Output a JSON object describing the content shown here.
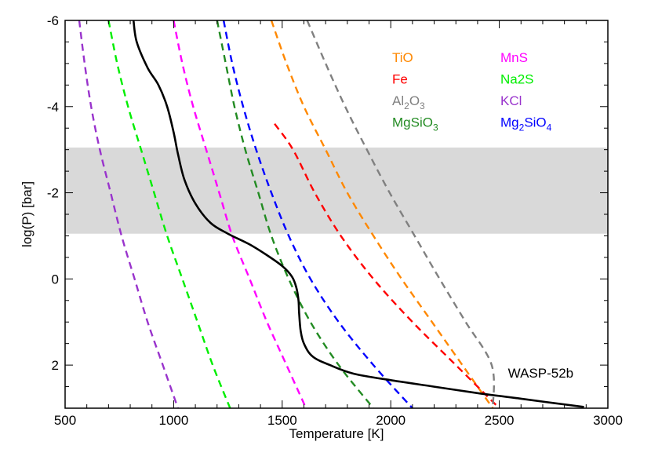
{
  "chart_data": {
    "type": "line",
    "title": "",
    "xlabel": "Temperature [K]",
    "ylabel": "log(P) [bar]",
    "xlim": [
      500,
      3000
    ],
    "ylim": [
      3,
      -6
    ],
    "x_ticks": [
      500,
      1000,
      1500,
      2000,
      2500,
      3000
    ],
    "y_ticks": [
      -6,
      -4,
      -2,
      0,
      2
    ],
    "y_minor_step": 0.5,
    "x_minor_step": 100,
    "shaded_band": {
      "ymin": -3.05,
      "ymax": -1.05,
      "color": "#d9d9d9"
    },
    "annotation": {
      "text": "WASP-52b",
      "x": 2540,
      "y": 2.45
    },
    "profile": {
      "name": "WASP-52b",
      "color": "#000000",
      "style": "solid",
      "points": [
        [
          815,
          -6
        ],
        [
          830,
          -5.5
        ],
        [
          880,
          -4.9
        ],
        [
          930,
          -4.5
        ],
        [
          970,
          -4.0
        ],
        [
          1000,
          -3.4
        ],
        [
          1020,
          -2.9
        ],
        [
          1050,
          -2.3
        ],
        [
          1100,
          -1.75
        ],
        [
          1170,
          -1.3
        ],
        [
          1250,
          -1.05
        ],
        [
          1350,
          -0.8
        ],
        [
          1430,
          -0.55
        ],
        [
          1500,
          -0.3
        ],
        [
          1545,
          -0.05
        ],
        [
          1565,
          0.2
        ],
        [
          1575,
          0.5
        ],
        [
          1578,
          0.8
        ],
        [
          1585,
          1.2
        ],
        [
          1600,
          1.5
        ],
        [
          1640,
          1.8
        ],
        [
          1720,
          2.0
        ],
        [
          1830,
          2.2
        ],
        [
          2000,
          2.35
        ],
        [
          2200,
          2.5
        ],
        [
          2400,
          2.65
        ],
        [
          2600,
          2.78
        ],
        [
          2750,
          2.88
        ],
        [
          2890,
          2.97
        ]
      ]
    },
    "series": [
      {
        "name": "TiO",
        "color": "#ff8800",
        "points": [
          [
            1450,
            -6
          ],
          [
            1520,
            -5
          ],
          [
            1600,
            -4
          ],
          [
            1700,
            -3
          ],
          [
            1800,
            -2
          ],
          [
            1920,
            -1
          ],
          [
            2050,
            0
          ],
          [
            2190,
            1
          ],
          [
            2330,
            2
          ],
          [
            2470,
            3
          ]
        ]
      },
      {
        "name": "Fe",
        "color": "#ff0000",
        "points": [
          [
            1465,
            -3.6
          ],
          [
            1550,
            -3
          ],
          [
            1650,
            -2
          ],
          [
            1770,
            -1
          ],
          [
            1920,
            0
          ],
          [
            2100,
            1
          ],
          [
            2300,
            2
          ],
          [
            2500,
            3
          ]
        ]
      },
      {
        "name": "Al2O3",
        "color": "#808080",
        "points": [
          [
            1615,
            -6
          ],
          [
            1700,
            -5
          ],
          [
            1790,
            -4
          ],
          [
            1890,
            -3
          ],
          [
            1995,
            -2
          ],
          [
            2110,
            -1
          ],
          [
            2225,
            0
          ],
          [
            2345,
            1
          ],
          [
            2465,
            2
          ],
          [
            2470,
            3
          ]
        ]
      },
      {
        "name": "MgSiO3",
        "color": "#228b22",
        "points": [
          [
            1200,
            -6
          ],
          [
            1240,
            -5
          ],
          [
            1280,
            -4
          ],
          [
            1330,
            -3
          ],
          [
            1390,
            -2
          ],
          [
            1450,
            -1
          ],
          [
            1530,
            0
          ],
          [
            1630,
            1
          ],
          [
            1760,
            2
          ],
          [
            1920,
            3
          ]
        ]
      },
      {
        "name": "MnS",
        "color": "#ff00ff",
        "points": [
          [
            1000,
            -6
          ],
          [
            1040,
            -5
          ],
          [
            1090,
            -4
          ],
          [
            1150,
            -3
          ],
          [
            1210,
            -2
          ],
          [
            1270,
            -1
          ],
          [
            1350,
            0
          ],
          [
            1430,
            1
          ],
          [
            1520,
            2
          ],
          [
            1610,
            3
          ]
        ]
      },
      {
        "name": "Na2S",
        "color": "#00ee00",
        "points": [
          [
            700,
            -6
          ],
          [
            740,
            -5
          ],
          [
            790,
            -4
          ],
          [
            850,
            -3
          ],
          [
            910,
            -2
          ],
          [
            970,
            -1
          ],
          [
            1040,
            0
          ],
          [
            1110,
            1
          ],
          [
            1180,
            2
          ],
          [
            1260,
            3
          ]
        ]
      },
      {
        "name": "KCl",
        "color": "#9933cc",
        "points": [
          [
            565,
            -6
          ],
          [
            590,
            -5
          ],
          [
            620,
            -4
          ],
          [
            660,
            -3
          ],
          [
            710,
            -2
          ],
          [
            760,
            -1
          ],
          [
            820,
            0
          ],
          [
            880,
            1
          ],
          [
            950,
            2
          ],
          [
            1020,
            3
          ]
        ]
      },
      {
        "name": "Mg2SiO4",
        "color": "#0000ff",
        "points": [
          [
            1230,
            -6
          ],
          [
            1270,
            -5
          ],
          [
            1320,
            -4
          ],
          [
            1380,
            -3
          ],
          [
            1450,
            -2
          ],
          [
            1530,
            -1
          ],
          [
            1630,
            0
          ],
          [
            1760,
            1
          ],
          [
            1920,
            2
          ],
          [
            2100,
            3
          ]
        ]
      }
    ],
    "legend": {
      "placement": "top-right",
      "entries": [
        {
          "name": "TiO",
          "base": "TiO",
          "sub": "",
          "tail": "",
          "color": "#ff8800"
        },
        {
          "name": "MnS",
          "base": "MnS",
          "sub": "",
          "tail": "",
          "color": "#ff00ff"
        },
        {
          "name": "Fe",
          "base": "Fe",
          "sub": "",
          "tail": "",
          "color": "#ff0000"
        },
        {
          "name": "Na2S",
          "base": "Na2S",
          "sub": "",
          "tail": "",
          "color": "#00ee00"
        },
        {
          "name": "Al2O3",
          "base": "Al",
          "sub": "2",
          "tail": "O",
          "sub2": "3",
          "color": "#808080"
        },
        {
          "name": "KCl",
          "base": "KCl",
          "sub": "",
          "tail": "",
          "color": "#9933cc"
        },
        {
          "name": "MgSiO3",
          "base": "MgSiO",
          "sub": "3",
          "tail": "",
          "color": "#228b22"
        },
        {
          "name": "Mg2SiO4",
          "base": "Mg",
          "sub": "2",
          "tail": "SiO",
          "sub2": "4",
          "color": "#0000ff"
        }
      ]
    }
  }
}
